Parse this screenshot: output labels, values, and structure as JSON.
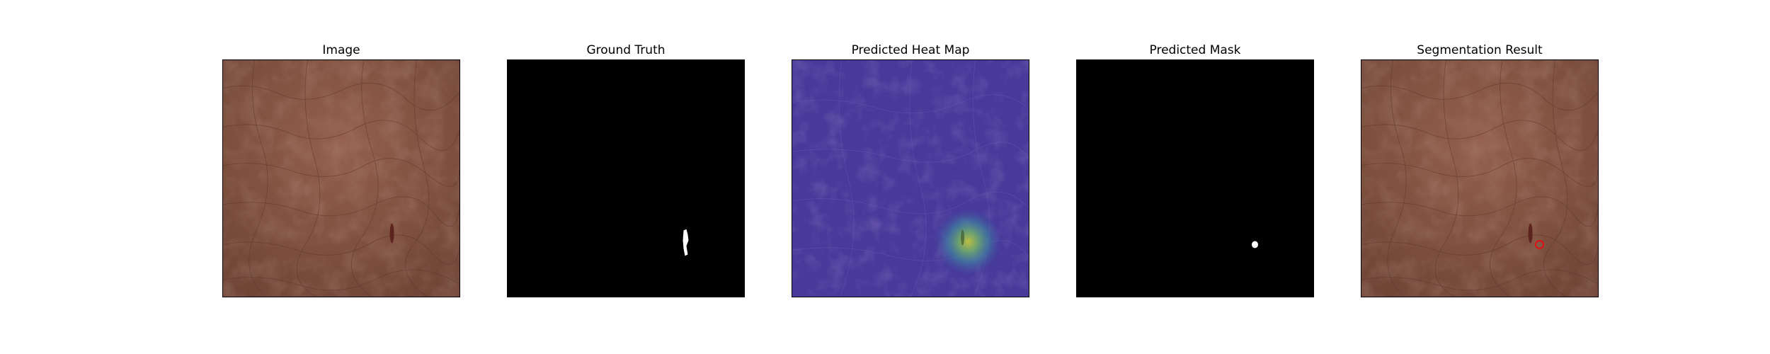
{
  "figure": {
    "panels": [
      {
        "title": "Image",
        "content": "leather-texture"
      },
      {
        "title": "Ground Truth",
        "content": "gt-mask"
      },
      {
        "title": "Predicted Heat Map",
        "content": "heat-map"
      },
      {
        "title": "Predicted Mask",
        "content": "pred-mask"
      },
      {
        "title": "Segmentation Result",
        "content": "segmentation-overlay"
      }
    ],
    "colors": {
      "leather": "#8a5a48",
      "leather_dark": "#5f3a2e",
      "defect": "#5a1f1a",
      "heat_background": "#4a3a9a",
      "heat_hot": "#b5c040",
      "mask_fg": "#ffffff",
      "mask_bg": "#000000",
      "contour": "#e01010"
    }
  }
}
